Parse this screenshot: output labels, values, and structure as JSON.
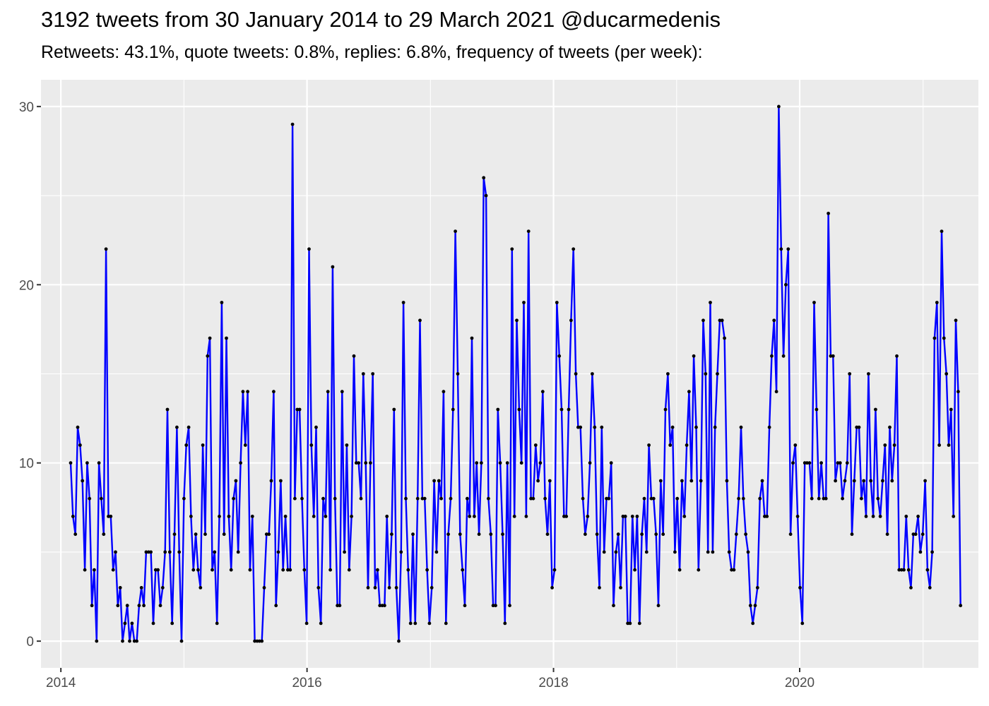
{
  "title": "3192 tweets from 30 January 2014 to 29 March 2021 @ducarmedenis",
  "subtitle": "Retweets: 43.1%, quote tweets: 0.8%, replies: 6.8%, frequency of tweets (per week):",
  "colors": {
    "line": "#0000ff",
    "point": "#000000",
    "panel": "#ebebeb",
    "grid": "#ffffff"
  },
  "chart_data": {
    "type": "line",
    "title": "3192 tweets from 30 January 2014 to 29 March 2021 @ducarmedenis",
    "subtitle": "Retweets: 43.1%, quote tweets: 0.8%, replies: 6.8%, frequency of tweets (per week):",
    "xlabel": "",
    "ylabel": "",
    "x_ticks": [
      "2014",
      "2016",
      "2018",
      "2020"
    ],
    "y_ticks": [
      0,
      10,
      20,
      30
    ],
    "xlim": [
      "2013-11-03",
      "2021-06-14"
    ],
    "ylim": [
      -1.5,
      31.5
    ],
    "grid": true,
    "legend": "none",
    "x_start": "2014-01-30",
    "x_step_days": 7,
    "values": [
      10,
      7,
      6,
      12,
      11,
      9,
      4,
      10,
      8,
      2,
      4,
      0,
      10,
      8,
      6,
      22,
      7,
      7,
      4,
      5,
      2,
      3,
      0,
      1,
      2,
      0,
      1,
      0,
      0,
      2,
      3,
      2,
      5,
      5,
      5,
      1,
      4,
      4,
      2,
      3,
      5,
      13,
      5,
      1,
      6,
      12,
      5,
      0,
      8,
      11,
      12,
      7,
      4,
      6,
      4,
      3,
      11,
      6,
      16,
      17,
      4,
      5,
      1,
      7,
      19,
      6,
      17,
      7,
      4,
      8,
      9,
      5,
      10,
      14,
      11,
      14,
      4,
      7,
      0,
      0,
      0,
      0,
      3,
      6,
      6,
      9,
      14,
      2,
      5,
      9,
      4,
      7,
      4,
      4,
      29,
      8,
      13,
      13,
      8,
      4,
      1,
      22,
      11,
      7,
      12,
      3,
      1,
      8,
      7,
      14,
      4,
      21,
      8,
      2,
      2,
      14,
      5,
      11,
      4,
      7,
      16,
      10,
      10,
      8,
      15,
      10,
      3,
      10,
      15,
      3,
      4,
      2,
      2,
      2,
      7,
      3,
      6,
      13,
      3,
      0,
      5,
      19,
      8,
      4,
      1,
      6,
      1,
      8,
      18,
      8,
      8,
      4,
      1,
      3,
      9,
      5,
      9,
      8,
      14,
      1,
      6,
      8,
      13,
      23,
      15,
      6,
      4,
      2,
      8,
      7,
      17,
      7,
      10,
      6,
      10,
      26,
      25,
      8,
      6,
      2,
      2,
      13,
      10,
      6,
      1,
      10,
      2,
      22,
      7,
      18,
      13,
      10,
      19,
      7,
      23,
      8,
      8,
      11,
      9,
      10,
      14,
      8,
      6,
      9,
      3,
      4,
      19,
      16,
      13,
      7,
      7,
      13,
      18,
      22,
      15,
      12,
      12,
      8,
      6,
      7,
      10,
      15,
      12,
      6,
      3,
      12,
      5,
      8,
      8,
      10,
      2,
      5,
      6,
      3,
      7,
      7,
      1,
      1,
      7,
      4,
      7,
      1,
      6,
      8,
      5,
      11,
      8,
      8,
      6,
      2,
      9,
      6,
      13,
      15,
      11,
      12,
      5,
      8,
      4,
      9,
      7,
      11,
      14,
      9,
      16,
      12,
      4,
      9,
      18,
      15,
      5,
      19,
      5,
      12,
      15,
      18,
      18,
      17,
      9,
      5,
      4,
      4,
      6,
      8,
      12,
      8,
      6,
      5,
      2,
      1,
      2,
      3,
      8,
      9,
      7,
      7,
      12,
      16,
      18,
      14,
      30,
      22,
      16,
      20,
      22,
      6,
      10,
      11,
      7,
      3,
      1,
      10,
      10,
      10,
      8,
      19,
      13,
      8,
      10,
      8,
      8,
      24,
      16,
      16,
      9,
      10,
      10,
      8,
      9,
      10,
      15,
      6,
      9,
      12,
      12,
      8,
      9,
      7,
      15,
      9,
      7,
      13,
      8,
      7,
      9,
      11,
      6,
      12,
      9,
      11,
      16,
      4,
      4,
      4,
      7,
      4,
      3,
      6,
      6,
      7,
      5,
      6,
      9,
      4,
      3,
      5,
      17,
      19,
      11,
      23,
      17,
      15,
      11,
      13,
      7,
      18,
      14,
      2
    ]
  }
}
